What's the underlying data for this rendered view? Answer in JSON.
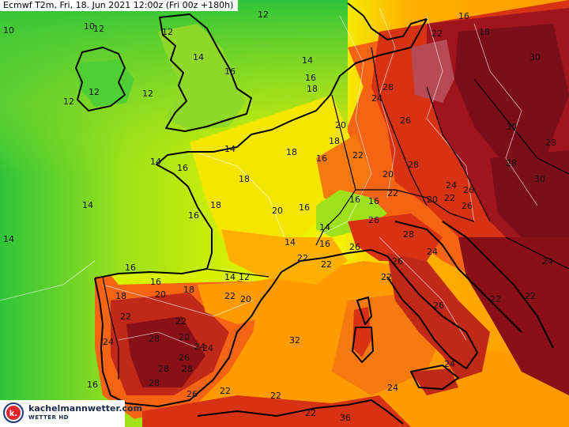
{
  "header": {
    "title": "Ecmwf T2m, Fri, 18. Jun 2021 12:00z (Fri 00z +180h)"
  },
  "brand": {
    "name": "kachelmannwetter.com",
    "subtitle": "WETTER HD",
    "logo_letter": "k."
  },
  "colors": {
    "sea_cool": "#2fc43a",
    "sea_mild": "#9ee11a",
    "sea_warm": "#dff300",
    "yellow": "#f4f000",
    "orange": "#ff9a00",
    "orange_red": "#f46414",
    "red": "#d73214",
    "dark_red": "#a0141e",
    "maroon": "#7a0f1a",
    "coast_line": "#000000",
    "isotherm_line": "#ffffff"
  },
  "temperature_labels": [
    {
      "value": "10"
    },
    {
      "value": "10"
    },
    {
      "value": "12"
    },
    {
      "value": "12"
    },
    {
      "value": "12"
    },
    {
      "value": "12"
    },
    {
      "value": "12"
    },
    {
      "value": "14"
    },
    {
      "value": "12"
    },
    {
      "value": "16"
    },
    {
      "value": "14"
    },
    {
      "value": "16"
    },
    {
      "value": "18"
    },
    {
      "value": "24"
    },
    {
      "value": "28"
    },
    {
      "value": "16"
    },
    {
      "value": "18"
    },
    {
      "value": "20"
    },
    {
      "value": "18"
    },
    {
      "value": "16"
    },
    {
      "value": "22"
    },
    {
      "value": "26"
    },
    {
      "value": "14"
    },
    {
      "value": "20"
    },
    {
      "value": "14"
    },
    {
      "value": "16"
    },
    {
      "value": "18"
    },
    {
      "value": "18"
    },
    {
      "value": "16"
    },
    {
      "value": "16"
    },
    {
      "value": "18"
    },
    {
      "value": "14"
    },
    {
      "value": "20"
    },
    {
      "value": "22"
    },
    {
      "value": "16"
    },
    {
      "value": "16"
    },
    {
      "value": "14"
    },
    {
      "value": "14"
    },
    {
      "value": "22"
    },
    {
      "value": "16"
    },
    {
      "value": "14"
    },
    {
      "value": "12"
    },
    {
      "value": "10"
    },
    {
      "value": "18"
    },
    {
      "value": "20"
    },
    {
      "value": "22"
    },
    {
      "value": "18"
    },
    {
      "value": "22"
    },
    {
      "value": "22"
    },
    {
      "value": "22"
    },
    {
      "value": "20"
    },
    {
      "value": "24"
    },
    {
      "value": "28"
    },
    {
      "value": "24"
    },
    {
      "value": "20"
    },
    {
      "value": "26"
    },
    {
      "value": "28"
    },
    {
      "value": "28"
    },
    {
      "value": "26"
    },
    {
      "value": "16"
    },
    {
      "value": "16"
    },
    {
      "value": "24"
    },
    {
      "value": "22"
    },
    {
      "value": "22"
    },
    {
      "value": "28"
    },
    {
      "value": "32"
    },
    {
      "value": "24"
    },
    {
      "value": "22"
    },
    {
      "value": "36"
    },
    {
      "value": "26"
    },
    {
      "value": "28"
    },
    {
      "value": "26"
    },
    {
      "value": "26"
    },
    {
      "value": "30"
    },
    {
      "value": "30"
    },
    {
      "value": "28"
    },
    {
      "value": "30"
    },
    {
      "value": "26"
    },
    {
      "value": "22"
    },
    {
      "value": "24"
    },
    {
      "value": "22"
    },
    {
      "value": "22"
    },
    {
      "value": "24"
    },
    {
      "value": "26"
    },
    {
      "value": "28"
    },
    {
      "value": "22"
    },
    {
      "value": "24"
    },
    {
      "value": "26"
    },
    {
      "value": "20"
    },
    {
      "value": "14"
    },
    {
      "value": "22"
    },
    {
      "value": "16"
    },
    {
      "value": "28"
    },
    {
      "value": "24"
    }
  ]
}
